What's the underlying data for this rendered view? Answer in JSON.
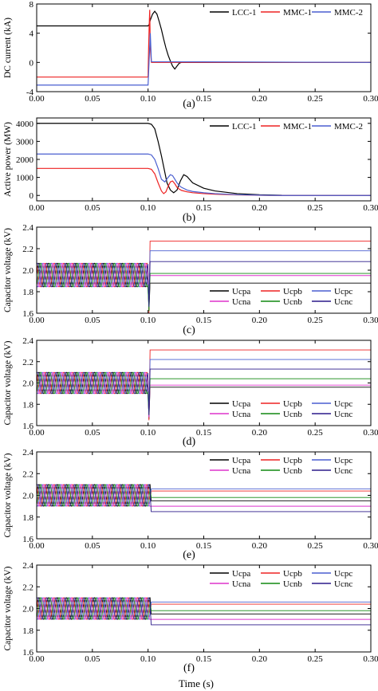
{
  "figure": {
    "xlabel": "Time (s)",
    "x_ticks": [
      "0.00",
      "0.05",
      "0.10",
      "0.15",
      "0.20",
      "0.25",
      "0.30"
    ]
  },
  "colors": {
    "LCC-1": "#000000",
    "MMC-1": "#ee2222",
    "MMC-2": "#4a5fd0",
    "Ucpa": "#000000",
    "Ucpb": "#ee2222",
    "Ucpc": "#4a5fd0",
    "Ucna": "#dd33cc",
    "Ucnb": "#118811",
    "Ucnc": "#2b1a8a"
  },
  "chart_data": [
    {
      "panel": "(a)",
      "type": "line",
      "ylabel": "DC current (kA)",
      "xlim": [
        0,
        0.3
      ],
      "ylim": [
        -4,
        8
      ],
      "y_ticks": [
        "-4",
        "0",
        "4",
        "8"
      ],
      "legend": {
        "placement": "top-right",
        "rows": [
          [
            "LCC-1",
            "MMC-1",
            "MMC-2"
          ]
        ]
      },
      "series": [
        {
          "name": "LCC-1",
          "x": [
            0,
            0.1,
            0.101,
            0.102,
            0.104,
            0.106,
            0.108,
            0.11,
            0.112,
            0.114,
            0.116,
            0.118,
            0.12,
            0.122,
            0.124,
            0.126,
            0.128,
            0.13,
            0.3
          ],
          "y": [
            5,
            5,
            5.2,
            5.8,
            6.6,
            7.0,
            6.6,
            5.6,
            4.5,
            3.2,
            2.0,
            1.0,
            0.2,
            -0.5,
            -0.9,
            -0.5,
            -0.1,
            0,
            0
          ]
        },
        {
          "name": "MMC-1",
          "x": [
            0,
            0.1,
            0.1005,
            0.101,
            0.1015,
            0.102,
            0.103,
            0.3
          ],
          "y": [
            -2,
            -2,
            2,
            5,
            7.2,
            2,
            0,
            0
          ]
        },
        {
          "name": "MMC-2",
          "x": [
            0,
            0.1,
            0.101,
            0.102,
            0.103,
            0.3
          ],
          "y": [
            -3.1,
            -3.1,
            0.5,
            4.0,
            0.1,
            0
          ]
        }
      ]
    },
    {
      "panel": "(b)",
      "type": "line",
      "ylabel": "Active power (MW)",
      "xlim": [
        0,
        0.3
      ],
      "ylim": [
        -300,
        4300
      ],
      "y_ticks": [
        "0",
        "1000",
        "2000",
        "3000",
        "4000"
      ],
      "legend": {
        "placement": "top-right",
        "rows": [
          [
            "LCC-1",
            "MMC-1",
            "MMC-2"
          ]
        ]
      },
      "series": [
        {
          "name": "LCC-1",
          "x": [
            0,
            0.1,
            0.103,
            0.106,
            0.109,
            0.112,
            0.115,
            0.117,
            0.12,
            0.123,
            0.126,
            0.129,
            0.132,
            0.135,
            0.14,
            0.15,
            0.16,
            0.18,
            0.2,
            0.22,
            0.3
          ],
          "y": [
            4000,
            4000,
            3950,
            3700,
            3000,
            2200,
            1300,
            700,
            300,
            150,
            300,
            800,
            1150,
            1050,
            700,
            400,
            250,
            100,
            40,
            10,
            0
          ]
        },
        {
          "name": "MMC-1",
          "x": [
            0,
            0.1,
            0.103,
            0.106,
            0.109,
            0.112,
            0.114,
            0.116,
            0.118,
            0.12,
            0.122,
            0.124,
            0.126,
            0.128,
            0.13,
            0.135,
            0.14,
            0.15,
            0.16,
            0.18,
            0.2,
            0.22,
            0.3
          ],
          "y": [
            1500,
            1500,
            1450,
            1200,
            700,
            250,
            100,
            200,
            500,
            750,
            800,
            650,
            450,
            350,
            280,
            200,
            150,
            100,
            70,
            30,
            10,
            0,
            0
          ]
        },
        {
          "name": "MMC-2",
          "x": [
            0,
            0.1,
            0.103,
            0.106,
            0.109,
            0.112,
            0.115,
            0.118,
            0.12,
            0.122,
            0.124,
            0.126,
            0.128,
            0.13,
            0.135,
            0.14,
            0.15,
            0.16,
            0.18,
            0.2,
            0.22,
            0.3
          ],
          "y": [
            2300,
            2300,
            2250,
            2000,
            1500,
            900,
            750,
            1000,
            1150,
            1100,
            900,
            700,
            550,
            450,
            300,
            220,
            150,
            100,
            40,
            15,
            0,
            0
          ]
        }
      ]
    },
    {
      "panel": "(c)",
      "type": "line",
      "ylabel": "Capacitor voltage (kV)",
      "xlim": [
        0,
        0.3
      ],
      "ylim": [
        1.6,
        2.4
      ],
      "y_ticks": [
        "1.6",
        "1.8",
        "2.0",
        "2.2",
        "2.4"
      ],
      "legend": {
        "placement": "lower-right",
        "rows": [
          [
            "Ucpa",
            "Ucpb",
            "Ucpc"
          ],
          [
            "Ucna",
            "Ucnb",
            "Ucnc"
          ]
        ]
      },
      "oscillation": {
        "center": 1.955,
        "amplitude": 0.11,
        "period_s": 0.0083,
        "until_s": 0.1
      },
      "series": [
        {
          "name": "Ucpa",
          "steady_after": 1.88,
          "dip_to": 1.62
        },
        {
          "name": "Ucpb",
          "steady_after": 2.27,
          "dip_to": 1.6
        },
        {
          "name": "Ucpc",
          "steady_after": 2.18,
          "dip_to": 1.65
        },
        {
          "name": "Ucna",
          "steady_after": 1.95,
          "dip_to": 1.65
        },
        {
          "name": "Ucnb",
          "steady_after": 1.97,
          "dip_to": 1.62
        },
        {
          "name": "Ucnc",
          "steady_after": 2.08,
          "dip_to": 1.66
        }
      ]
    },
    {
      "panel": "(d)",
      "type": "line",
      "ylabel": "Capacitor voltage (kV)",
      "xlim": [
        0,
        0.3
      ],
      "ylim": [
        1.6,
        2.4
      ],
      "y_ticks": [
        "1.6",
        "1.8",
        "2.0",
        "2.2",
        "2.4"
      ],
      "legend": {
        "placement": "lower-right",
        "rows": [
          [
            "Ucpa",
            "Ucpb",
            "Ucpc"
          ],
          [
            "Ucna",
            "Ucnb",
            "Ucnc"
          ]
        ]
      },
      "oscillation": {
        "center": 2.0,
        "amplitude": 0.1,
        "period_s": 0.0083,
        "until_s": 0.1
      },
      "series": [
        {
          "name": "Ucpa",
          "steady_after": 1.96,
          "dip_to": 1.66
        },
        {
          "name": "Ucpb",
          "steady_after": 2.31,
          "dip_to": 1.65
        },
        {
          "name": "Ucpc",
          "steady_after": 2.22,
          "dip_to": 1.68
        },
        {
          "name": "Ucna",
          "steady_after": 1.98,
          "dip_to": 1.68
        },
        {
          "name": "Ucnb",
          "steady_after": 2.04,
          "dip_to": 1.7
        },
        {
          "name": "Ucnc",
          "steady_after": 2.13,
          "dip_to": 1.7
        }
      ]
    },
    {
      "panel": "(e)",
      "type": "line",
      "ylabel": "Capacitor voltage (kV)",
      "xlim": [
        0,
        0.3
      ],
      "ylim": [
        1.6,
        2.4
      ],
      "y_ticks": [
        "1.6",
        "1.8",
        "2.0",
        "2.2",
        "2.4"
      ],
      "legend": {
        "placement": "top-right",
        "rows": [
          [
            "Ucpa",
            "Ucpb",
            "Ucpc"
          ],
          [
            "Ucna",
            "Ucnb",
            "Ucnc"
          ]
        ]
      },
      "oscillation": {
        "center": 2.0,
        "amplitude": 0.1,
        "period_s": 0.0083,
        "until_s": 0.102
      },
      "series": [
        {
          "name": "Ucpa",
          "steady_after": 1.95,
          "dip_to": 1.95
        },
        {
          "name": "Ucpb",
          "steady_after": 2.04,
          "dip_to": 2.04
        },
        {
          "name": "Ucpc",
          "steady_after": 2.06,
          "dip_to": 2.06
        },
        {
          "name": "Ucna",
          "steady_after": 1.9,
          "dip_to": 1.9
        },
        {
          "name": "Ucnb",
          "steady_after": 1.98,
          "dip_to": 1.98
        },
        {
          "name": "Ucnc",
          "steady_after": 1.85,
          "dip_to": 1.85
        }
      ]
    },
    {
      "panel": "(f)",
      "type": "line",
      "ylabel": "Capacitor voltage (kV)",
      "xlim": [
        0,
        0.3
      ],
      "ylim": [
        1.6,
        2.4
      ],
      "y_ticks": [
        "1.6",
        "1.8",
        "2.0",
        "2.2",
        "2.4"
      ],
      "legend": {
        "placement": "top-right",
        "rows": [
          [
            "Ucpa",
            "Ucpb",
            "Ucpc"
          ],
          [
            "Ucna",
            "Ucnb",
            "Ucnc"
          ]
        ]
      },
      "oscillation": {
        "center": 2.0,
        "amplitude": 0.1,
        "period_s": 0.0083,
        "until_s": 0.102
      },
      "series": [
        {
          "name": "Ucpa",
          "steady_after": 1.95,
          "dip_to": 1.95
        },
        {
          "name": "Ucpb",
          "steady_after": 2.04,
          "dip_to": 2.04
        },
        {
          "name": "Ucpc",
          "steady_after": 2.06,
          "dip_to": 2.06
        },
        {
          "name": "Ucna",
          "steady_after": 1.9,
          "dip_to": 1.9
        },
        {
          "name": "Ucnb",
          "steady_after": 1.98,
          "dip_to": 1.98
        },
        {
          "name": "Ucnc",
          "steady_after": 1.85,
          "dip_to": 1.85
        }
      ]
    }
  ]
}
